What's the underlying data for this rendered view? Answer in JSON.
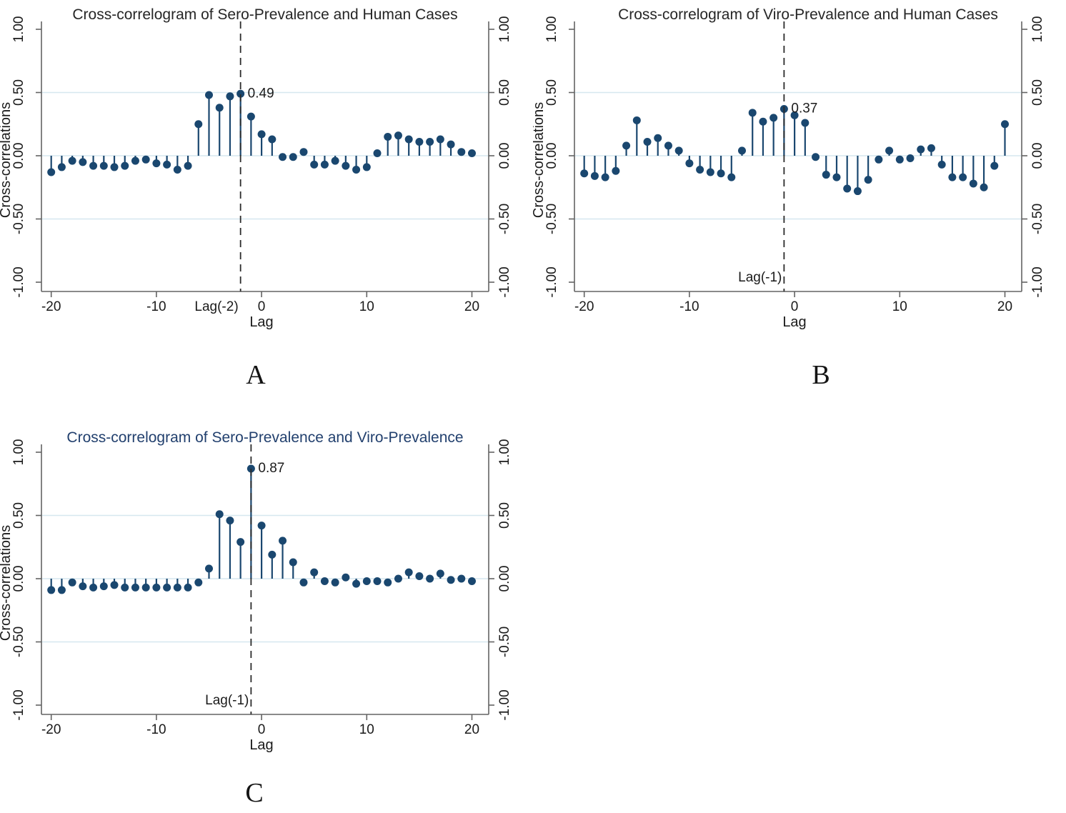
{
  "figure": {
    "panel_letters": [
      "A",
      "B",
      "C"
    ],
    "colors": {
      "stem": "#1a476f",
      "grid": "#d6e7ef",
      "axis": "#636363",
      "text": "#1a1a1a",
      "dashed": "#2b2b2b"
    }
  },
  "chart_data": [
    {
      "type": "scatter",
      "variant": "stem-lollipop-correlogram",
      "panel_letter": "A",
      "title": "Cross-correlogram of Sero-Prevalence and Human Cases",
      "title_color": "#262626",
      "xlabel": "Lag",
      "ylabel": "Cross-correlations",
      "xlim": [
        -21.5,
        21.5
      ],
      "ylim": [
        -1.08,
        1.08
      ],
      "x_ticks": [
        -20,
        -10,
        0,
        10,
        20
      ],
      "y_ticks": [
        "1.00",
        "0.50",
        "0.00",
        "-0.50",
        "-1.00"
      ],
      "y_tick_values": [
        1,
        0.5,
        0,
        -0.5,
        -1
      ],
      "gridline_values": [
        0.5,
        0,
        -0.5
      ],
      "x": [
        -20,
        -19,
        -18,
        -17,
        -16,
        -15,
        -14,
        -13,
        -12,
        -11,
        -10,
        -9,
        -8,
        -7,
        -6,
        -5,
        -4,
        -3,
        -2,
        -1,
        0,
        1,
        2,
        3,
        4,
        5,
        6,
        7,
        8,
        9,
        10,
        11,
        12,
        13,
        14,
        15,
        16,
        17,
        18,
        19,
        20
      ],
      "y": [
        -0.13,
        -0.09,
        -0.04,
        -0.05,
        -0.08,
        -0.08,
        -0.09,
        -0.08,
        -0.04,
        -0.03,
        -0.06,
        -0.07,
        -0.11,
        -0.08,
        0.25,
        0.48,
        0.38,
        0.47,
        0.49,
        0.31,
        0.17,
        0.13,
        -0.01,
        -0.01,
        0.03,
        -0.07,
        -0.07,
        -0.04,
        -0.08,
        -0.11,
        -0.09,
        0.02,
        0.15,
        0.16,
        0.13,
        0.11,
        0.11,
        0.13,
        0.09,
        0.03,
        0.02
      ],
      "peak": {
        "lag": -2,
        "value": 0.49,
        "label": "0.49"
      },
      "dashed_line": {
        "lag": -2,
        "label": "Lag(-2)",
        "label_position": "below-axis"
      }
    },
    {
      "type": "scatter",
      "variant": "stem-lollipop-correlogram",
      "panel_letter": "B",
      "title": "Cross-correlogram of Viro-Prevalence and Human Cases",
      "title_color": "#262626",
      "xlabel": "Lag",
      "ylabel": "Cross-correlations",
      "xlim": [
        -21.5,
        21.5
      ],
      "ylim": [
        -1.08,
        1.08
      ],
      "x_ticks": [
        -20,
        -10,
        0,
        10,
        20
      ],
      "y_ticks": [
        "1.00",
        "0.50",
        "0.00",
        "-0.50",
        "-1.00"
      ],
      "y_tick_values": [
        1,
        0.5,
        0,
        -0.5,
        -1
      ],
      "gridline_values": [
        0.5,
        0,
        -0.5
      ],
      "x": [
        -20,
        -19,
        -18,
        -17,
        -16,
        -15,
        -14,
        -13,
        -12,
        -11,
        -10,
        -9,
        -8,
        -7,
        -6,
        -5,
        -4,
        -3,
        -2,
        -1,
        0,
        1,
        2,
        3,
        4,
        5,
        6,
        7,
        8,
        9,
        10,
        11,
        12,
        13,
        14,
        15,
        16,
        17,
        18,
        19,
        20
      ],
      "y": [
        -0.14,
        -0.16,
        -0.17,
        -0.12,
        0.08,
        0.28,
        0.11,
        0.14,
        0.08,
        0.04,
        -0.06,
        -0.11,
        -0.13,
        -0.14,
        -0.17,
        0.04,
        0.34,
        0.27,
        0.3,
        0.37,
        0.32,
        0.26,
        -0.01,
        -0.15,
        -0.17,
        -0.26,
        -0.28,
        -0.19,
        -0.03,
        0.04,
        -0.03,
        -0.02,
        0.05,
        0.06,
        -0.07,
        -0.17,
        -0.17,
        -0.22,
        -0.25,
        -0.08,
        0.25
      ],
      "peak": {
        "lag": -1,
        "value": 0.37,
        "label": "0.37"
      },
      "dashed_line": {
        "lag": -1,
        "label": "Lag(-1)",
        "label_position": "above-axis"
      }
    },
    {
      "type": "scatter",
      "variant": "stem-lollipop-correlogram",
      "panel_letter": "C",
      "title": "Cross-correlogram of Sero-Prevalence and Viro-Prevalence",
      "title_color": "#22406e",
      "xlabel": "Lag",
      "ylabel": "Cross-correlations",
      "xlim": [
        -21.5,
        21.5
      ],
      "ylim": [
        -1.08,
        1.08
      ],
      "x_ticks": [
        -20,
        -10,
        0,
        10,
        20
      ],
      "y_ticks": [
        "1.00",
        "0.50",
        "0.00",
        "-0.50",
        "-1.00"
      ],
      "y_tick_values": [
        1,
        0.5,
        0,
        -0.5,
        -1
      ],
      "gridline_values": [
        0.5,
        0,
        -0.5
      ],
      "x": [
        -20,
        -19,
        -18,
        -17,
        -16,
        -15,
        -14,
        -13,
        -12,
        -11,
        -10,
        -9,
        -8,
        -7,
        -6,
        -5,
        -4,
        -3,
        -2,
        -1,
        0,
        1,
        2,
        3,
        4,
        5,
        6,
        7,
        8,
        9,
        10,
        11,
        12,
        13,
        14,
        15,
        16,
        17,
        18,
        19,
        20
      ],
      "y": [
        -0.09,
        -0.09,
        -0.03,
        -0.06,
        -0.07,
        -0.06,
        -0.05,
        -0.07,
        -0.07,
        -0.07,
        -0.07,
        -0.07,
        -0.07,
        -0.07,
        -0.03,
        0.08,
        0.51,
        0.46,
        0.29,
        0.87,
        0.42,
        0.19,
        0.3,
        0.13,
        -0.03,
        0.05,
        -0.02,
        -0.03,
        0.01,
        -0.04,
        -0.02,
        -0.02,
        -0.03,
        0.0,
        0.05,
        0.02,
        0.0,
        0.04,
        -0.01,
        0.0,
        -0.02
      ],
      "peak": {
        "lag": -1,
        "value": 0.87,
        "label": "0.87"
      },
      "dashed_line": {
        "lag": -1,
        "label": "Lag(-1)",
        "label_position": "above-axis"
      }
    }
  ]
}
